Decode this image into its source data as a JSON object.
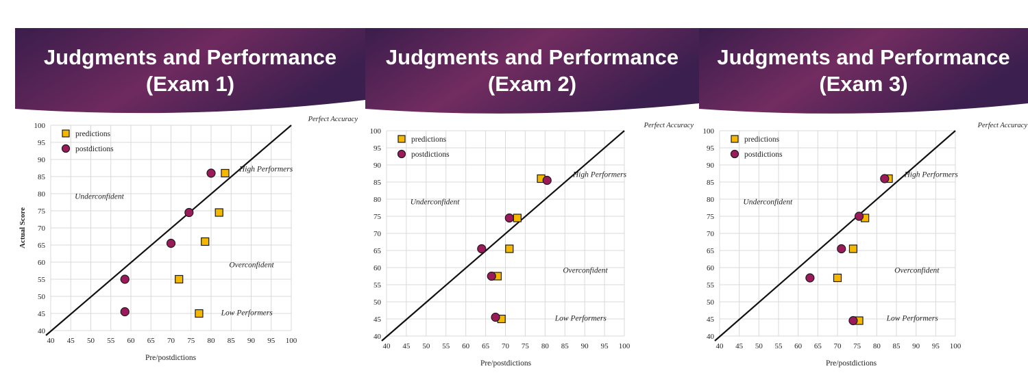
{
  "colors": {
    "banner_dark": "#3a1d4c",
    "banner_mid": "#6e2a5e",
    "prediction_fill": "#f5b800",
    "postdiction_fill": "#9b1a5a",
    "marker_stroke": "#1a1a1a",
    "grid": "#d9d9d9",
    "line": "#111111"
  },
  "shared": {
    "legend": [
      "predictions",
      "postdictions"
    ],
    "xlabel": "Pre/postdictions",
    "ylabel": "Actual Score",
    "region_labels": {
      "perfect": "Perfect Accuracy",
      "high": "High Performers",
      "under": "Underconfident",
      "over": "Overconfident",
      "low": "Low Performers"
    }
  },
  "chart_data": [
    {
      "type": "scatter",
      "title_line1": "Judgments and Performance",
      "title_line2": "(Exam 1)",
      "xlabel": "Pre/postdictions",
      "ylabel": "Actual Score",
      "xlim": [
        40,
        100
      ],
      "ylim": [
        40,
        100
      ],
      "xticks": [
        40,
        45,
        50,
        55,
        60,
        65,
        70,
        75,
        80,
        85,
        90,
        95,
        100
      ],
      "yticks": [
        40,
        45,
        50,
        55,
        60,
        65,
        70,
        75,
        80,
        85,
        90,
        95,
        100
      ],
      "grid": true,
      "reference_line": "y = x",
      "series": [
        {
          "name": "predictions",
          "marker": "square",
          "points": [
            [
              83.5,
              86
            ],
            [
              82,
              74.5
            ],
            [
              78.5,
              66
            ],
            [
              72,
              55
            ],
            [
              77,
              45
            ]
          ]
        },
        {
          "name": "postdictions",
          "marker": "circle",
          "points": [
            [
              80,
              86
            ],
            [
              74.5,
              74.5
            ],
            [
              70,
              65.5
            ],
            [
              58.5,
              55
            ],
            [
              58.5,
              45.5
            ]
          ]
        }
      ]
    },
    {
      "type": "scatter",
      "title_line1": "Judgments and Performance",
      "title_line2": "(Exam 2)",
      "xlabel": "Pre/postdictions",
      "ylabel": "",
      "xlim": [
        40,
        100
      ],
      "ylim": [
        40,
        100
      ],
      "xticks": [
        40,
        45,
        50,
        55,
        60,
        65,
        70,
        75,
        80,
        85,
        90,
        95,
        100
      ],
      "yticks": [
        40,
        45,
        50,
        55,
        60,
        65,
        70,
        75,
        80,
        85,
        90,
        95,
        100
      ],
      "grid": true,
      "reference_line": "y = x",
      "series": [
        {
          "name": "predictions",
          "marker": "square",
          "points": [
            [
              79,
              86
            ],
            [
              73,
              74.5
            ],
            [
              71,
              65.5
            ],
            [
              68,
              57.5
            ],
            [
              69,
              45
            ]
          ]
        },
        {
          "name": "postdictions",
          "marker": "circle",
          "points": [
            [
              80.5,
              85.5
            ],
            [
              71,
              74.5
            ],
            [
              64,
              65.5
            ],
            [
              66.5,
              57.5
            ],
            [
              67.5,
              45.5
            ]
          ]
        }
      ]
    },
    {
      "type": "scatter",
      "title_line1": "Judgments and Performance",
      "title_line2": "(Exam 3)",
      "xlabel": "Pre/postdictions",
      "ylabel": "",
      "xlim": [
        40,
        100
      ],
      "ylim": [
        40,
        100
      ],
      "xticks": [
        40,
        45,
        50,
        55,
        60,
        65,
        70,
        75,
        80,
        85,
        90,
        95,
        100
      ],
      "yticks": [
        40,
        45,
        50,
        55,
        60,
        65,
        70,
        75,
        80,
        85,
        90,
        95,
        100
      ],
      "grid": true,
      "reference_line": "y = x",
      "series": [
        {
          "name": "predictions",
          "marker": "square",
          "points": [
            [
              83,
              86
            ],
            [
              77,
              74.5
            ],
            [
              74,
              65.5
            ],
            [
              70,
              57
            ],
            [
              75.5,
              44.5
            ]
          ]
        },
        {
          "name": "postdictions",
          "marker": "circle",
          "points": [
            [
              82,
              86
            ],
            [
              75.5,
              75
            ],
            [
              71,
              65.5
            ],
            [
              63,
              57
            ],
            [
              74,
              44.5
            ]
          ]
        }
      ]
    }
  ]
}
